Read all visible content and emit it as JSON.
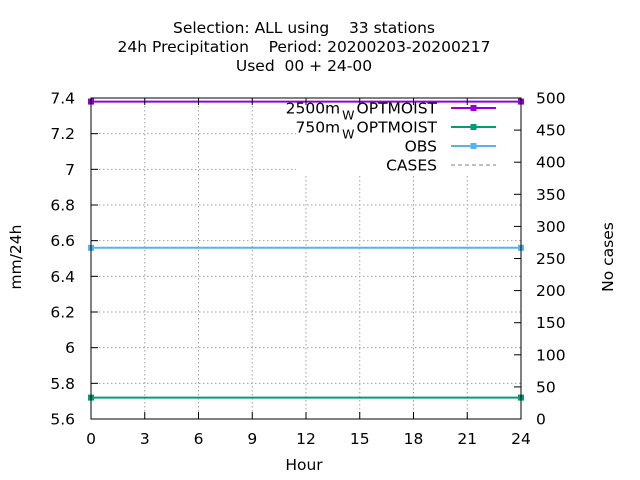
{
  "chart_data": {
    "type": "line",
    "title_lines": [
      "Selection: ALL using    33 stations",
      "24h Precipitation    Period: 20200203-20200217",
      "Used  00 + 24-00"
    ],
    "xlabel": "Hour",
    "ylabel": "mm/24h",
    "y2label": "No cases",
    "xlim": [
      0,
      24
    ],
    "ylim": [
      5.6,
      7.4
    ],
    "y2lim": [
      0,
      500
    ],
    "xticks": [
      0,
      3,
      6,
      9,
      12,
      15,
      18,
      21,
      24
    ],
    "xtick_labels": [
      "0",
      "3",
      "6",
      "9",
      "12",
      "15",
      "18",
      "21",
      "24"
    ],
    "yticks": [
      5.6,
      5.8,
      6,
      6.2,
      6.4,
      6.6,
      6.8,
      7,
      7.2,
      7.4
    ],
    "ytick_labels": [
      "5.6",
      "5.8",
      "6",
      "6.2",
      "6.4",
      "6.6",
      "6.8",
      "7",
      "7.2",
      "7.4"
    ],
    "y2ticks": [
      0,
      50,
      100,
      150,
      200,
      250,
      300,
      350,
      400,
      450,
      500
    ],
    "y2tick_labels": [
      "0",
      "50",
      "100",
      "150",
      "200",
      "250",
      "300",
      "350",
      "400",
      "450",
      "500"
    ],
    "grid": true,
    "legend_position": "top-right",
    "series": [
      {
        "name_main": "2500m",
        "name_sub": "W",
        "name_tail": "OPTMOIST",
        "color": "#9400d3",
        "marker": "square",
        "axis": "y",
        "x": [
          0,
          24
        ],
        "values": [
          7.38,
          7.38
        ]
      },
      {
        "name_main": "750m",
        "name_sub": "W",
        "name_tail": "OPTMOIST",
        "color": "#009e73",
        "marker": "square",
        "axis": "y",
        "x": [
          0,
          24
        ],
        "values": [
          5.72,
          5.72
        ]
      },
      {
        "name_main": "OBS",
        "name_sub": "",
        "name_tail": "",
        "color": "#56b4e9",
        "marker": "square",
        "axis": "y",
        "x": [
          0,
          24
        ],
        "values": [
          6.56,
          6.56
        ]
      },
      {
        "name_main": "CASES",
        "name_sub": "",
        "name_tail": "",
        "color": "#808080",
        "marker": "none",
        "dashed": true,
        "axis": "y2",
        "x": [
          0,
          24
        ],
        "values": [
          500,
          500
        ]
      }
    ]
  }
}
